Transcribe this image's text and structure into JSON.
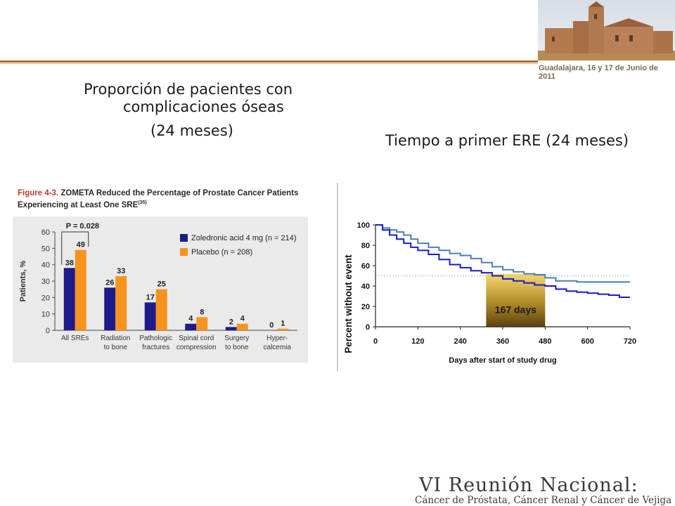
{
  "slide": {
    "left_title_line1": "Proporción de pacientes con",
    "left_title_line2": "complicaciones óseas",
    "left_title_line3": "(24 meses)",
    "right_title": "Tiempo a primer ERE (24 meses)"
  },
  "banner": {
    "caption": "Guadalajara, 16 y 17 de Junio de 2011"
  },
  "footer": {
    "title": "VI Reunión Nacional:",
    "subtitle": "Cáncer de Próstata, Cáncer Renal y Cáncer de Vejiga"
  },
  "colors": {
    "zoledronic": "#1f1a8a",
    "placebo": "#f7941d",
    "km_zol": "#1a1acc",
    "km_pla": "#4a7fb5",
    "accent_rule": "#b06a2c"
  },
  "chart_data": [
    {
      "type": "bar",
      "title": "Figure 4-3. ZOMETA Reduced the Percentage of Prostate Cancer Patients Experiencing at Least One SRE",
      "title_number": "Figure 4-3.",
      "title_rest": "ZOMETA Reduced the Percentage of Prostate Cancer Patients Experiencing at Least One SRE",
      "title_superscript": "(35)",
      "annotation": "P = 0.028",
      "ylabel": "Patients, %",
      "ylim": [
        0,
        60
      ],
      "yticks": [
        0,
        10,
        20,
        30,
        40,
        50,
        60
      ],
      "categories": [
        [
          "All SREs"
        ],
        [
          "Radiation",
          "to bone"
        ],
        [
          "Pathologic",
          "fractures"
        ],
        [
          "Spinal cord",
          "compression"
        ],
        [
          "Surgery",
          "to bone"
        ],
        [
          "Hyper-",
          "calcemia"
        ]
      ],
      "series": [
        {
          "name": "Zoledronic acid 4 mg (n = 214)",
          "values": [
            38,
            26,
            17,
            4,
            2,
            0
          ]
        },
        {
          "name": "Placebo (n = 208)",
          "values": [
            49,
            33,
            25,
            8,
            4,
            1
          ]
        }
      ],
      "legend_position": "top-right"
    },
    {
      "type": "line",
      "xlabel": "Days after start of study drug",
      "ylabel": "Percent without event",
      "xlim": [
        0,
        720
      ],
      "ylim": [
        0,
        100
      ],
      "xticks": [
        0,
        120,
        240,
        360,
        480,
        600,
        720
      ],
      "yticks": [
        0,
        20,
        40,
        60,
        80,
        100
      ],
      "annotation": "167 days",
      "highlight_x_range": [
        313,
        480
      ],
      "reference_line_y": 50,
      "series": [
        {
          "x": [
            0,
            20,
            40,
            60,
            80,
            100,
            120,
            150,
            180,
            210,
            240,
            270,
            300,
            330,
            360,
            390,
            420,
            450,
            480,
            510,
            540,
            570,
            600,
            630,
            660,
            690,
            720
          ],
          "y": [
            100,
            97,
            95,
            93,
            90,
            86,
            82,
            78,
            75,
            72,
            70,
            67,
            63,
            59,
            56,
            54,
            52,
            51,
            48,
            45,
            45,
            44,
            44,
            44,
            44,
            44,
            44
          ]
        },
        {
          "x": [
            0,
            20,
            40,
            60,
            80,
            100,
            120,
            150,
            180,
            210,
            240,
            270,
            300,
            330,
            360,
            390,
            420,
            450,
            480,
            510,
            540,
            570,
            600,
            630,
            660,
            690,
            720
          ],
          "y": [
            100,
            95,
            90,
            86,
            82,
            78,
            75,
            71,
            66,
            61,
            58,
            55,
            53,
            50,
            47,
            45,
            43,
            41,
            40,
            37,
            35,
            34,
            33,
            32,
            31,
            29,
            29
          ]
        }
      ]
    }
  ]
}
